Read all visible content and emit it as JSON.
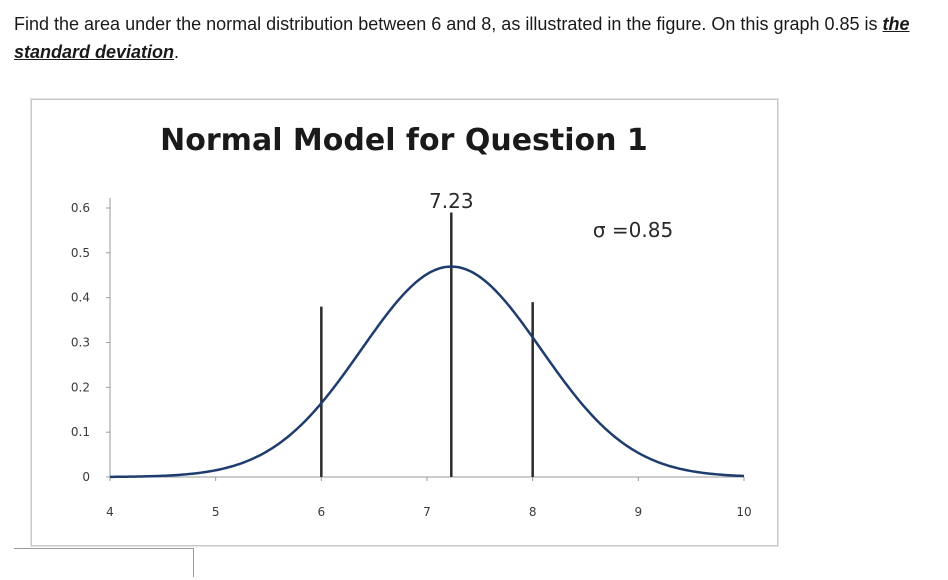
{
  "question": {
    "text_before": "Find the area under the normal distribution between 6 and 8, as illustrated in the figure. On this graph 0.85 is ",
    "emphasis": "the standard deviation",
    "text_after": "."
  },
  "answer": {
    "value": ""
  },
  "chart_data": {
    "type": "line",
    "title": "Normal Model for Question 1",
    "xlabel": "",
    "ylabel": "",
    "xlim": [
      4,
      10
    ],
    "ylim": [
      0,
      0.6
    ],
    "x_ticks": [
      4,
      5,
      6,
      7,
      8,
      9,
      10
    ],
    "y_ticks": [
      0,
      0.1,
      0.2,
      0.3,
      0.4,
      0.5,
      0.6
    ],
    "x_tick_labels": [
      "4",
      "5",
      "6",
      "7",
      "8",
      "9",
      "10"
    ],
    "y_tick_labels": [
      "0",
      "0.1",
      "0.2",
      "0.3",
      "0.4",
      "0.5",
      "0.6"
    ],
    "grid": false,
    "legend": "none",
    "series": [
      {
        "distribution": "normal",
        "mean": 7.23,
        "sd": 0.85,
        "color": "#1f3c6e"
      }
    ],
    "vertical_lines": [
      {
        "x": 6,
        "height": 0.38
      },
      {
        "x": 7.23,
        "height": 0.59
      },
      {
        "x": 8,
        "height": 0.39
      }
    ],
    "annotations": [
      {
        "text": "7.23",
        "x": 7.23,
        "y": 0.6
      },
      {
        "text": "σ =0.85",
        "x": 8.95,
        "y": 0.535
      }
    ],
    "line_color": "#2b2b2b",
    "axis_color": "#9a9a9a"
  }
}
